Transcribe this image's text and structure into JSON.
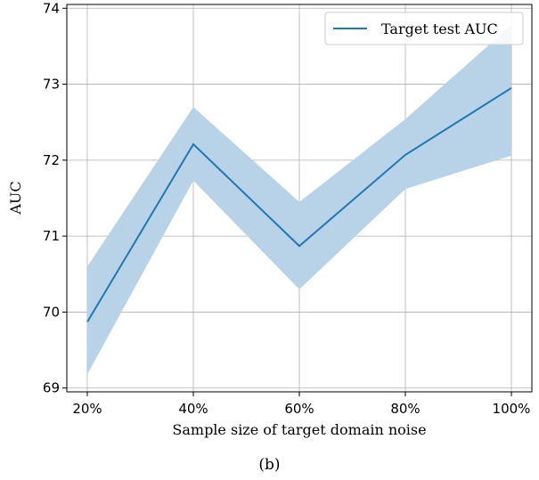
{
  "caption": "(b)",
  "chart_data": {
    "type": "line",
    "title": "",
    "xlabel": "Sample size of target domain noise",
    "ylabel": "AUC",
    "categories": [
      "20%",
      "40%",
      "60%",
      "80%",
      "100%"
    ],
    "ylim": [
      68.95,
      74.05
    ],
    "yticks": [
      69,
      70,
      71,
      72,
      73,
      74
    ],
    "grid": true,
    "legend": {
      "position": "top-right"
    },
    "series": [
      {
        "name": "Target test AUC",
        "color": "#1f77b4",
        "band_color": "#b8d3e8",
        "values": [
          69.87,
          72.21,
          70.87,
          72.07,
          72.95
        ],
        "lower": [
          69.18,
          71.73,
          70.3,
          71.62,
          72.06
        ],
        "upper": [
          70.6,
          72.7,
          71.45,
          72.54,
          73.78
        ]
      }
    ]
  }
}
